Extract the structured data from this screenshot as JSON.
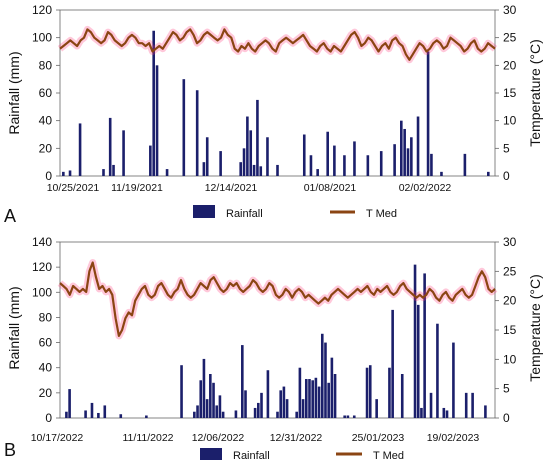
{
  "chart_data": [
    {
      "type": "bar",
      "panel_letter": "A",
      "ylabel": "Rainfall (mm)",
      "y2label": "Temperature (°C)",
      "ylim": [
        0,
        120
      ],
      "y2lim": [
        0,
        30
      ],
      "yticks": [
        "0",
        "20",
        "40",
        "60",
        "80",
        "100",
        "120"
      ],
      "y2ticks": [
        "0",
        "5",
        "10",
        "15",
        "20",
        "25",
        "30"
      ],
      "x_ticks": [
        "10/25/2021",
        "11/19/2021",
        "12/14/2021",
        "01/08/2021",
        "02/02/2022"
      ],
      "legend": [
        "Rainfall",
        "T Med"
      ],
      "colors": {
        "rainfall": "#1b1f6b",
        "tmed": "#8b4513",
        "tmed_glow": "#ff3b7a"
      },
      "rainfall": [
        {
          "day": 1,
          "value": 3
        },
        {
          "day": 3,
          "value": 4
        },
        {
          "day": 6,
          "value": 38
        },
        {
          "day": 13,
          "value": 5
        },
        {
          "day": 15,
          "value": 42
        },
        {
          "day": 16,
          "value": 8
        },
        {
          "day": 19,
          "value": 33
        },
        {
          "day": 27,
          "value": 22
        },
        {
          "day": 28,
          "value": 105
        },
        {
          "day": 29,
          "value": 80
        },
        {
          "day": 32,
          "value": 5
        },
        {
          "day": 37,
          "value": 70
        },
        {
          "day": 41,
          "value": 62
        },
        {
          "day": 43,
          "value": 10
        },
        {
          "day": 44,
          "value": 28
        },
        {
          "day": 48,
          "value": 18
        },
        {
          "day": 54,
          "value": 10
        },
        {
          "day": 55,
          "value": 20
        },
        {
          "day": 56,
          "value": 43
        },
        {
          "day": 57,
          "value": 33
        },
        {
          "day": 58,
          "value": 8
        },
        {
          "day": 59,
          "value": 55
        },
        {
          "day": 60,
          "value": 7
        },
        {
          "day": 62,
          "value": 28
        },
        {
          "day": 65,
          "value": 8
        },
        {
          "day": 73,
          "value": 30
        },
        {
          "day": 75,
          "value": 15
        },
        {
          "day": 77,
          "value": 5
        },
        {
          "day": 80,
          "value": 32
        },
        {
          "day": 82,
          "value": 22
        },
        {
          "day": 85,
          "value": 15
        },
        {
          "day": 88,
          "value": 25
        },
        {
          "day": 92,
          "value": 15
        },
        {
          "day": 96,
          "value": 18
        },
        {
          "day": 100,
          "value": 23
        },
        {
          "day": 102,
          "value": 40
        },
        {
          "day": 103,
          "value": 34
        },
        {
          "day": 104,
          "value": 20
        },
        {
          "day": 105,
          "value": 28
        },
        {
          "day": 107,
          "value": 43
        },
        {
          "day": 110,
          "value": 90
        },
        {
          "day": 111,
          "value": 16
        },
        {
          "day": 114,
          "value": 3
        },
        {
          "day": 121,
          "value": 16
        },
        {
          "day": 128,
          "value": 3
        }
      ],
      "tmed": [
        23,
        23.5,
        24,
        24.5,
        24,
        23.5,
        24.5,
        25,
        26.5,
        26,
        25,
        24.5,
        24,
        24.5,
        26,
        25.5,
        24.5,
        24,
        23.5,
        24,
        25,
        25.5,
        25,
        24,
        24,
        23.5,
        24,
        22.5,
        23,
        23.5,
        23,
        24,
        25,
        26,
        25.5,
        24.5,
        25,
        26,
        26.5,
        25.5,
        24,
        24.5,
        25.5,
        26,
        25.5,
        25,
        24.5,
        25,
        26.5,
        25.5,
        25,
        23,
        22.5,
        23.5,
        23,
        24,
        23,
        22.5,
        23.5,
        24,
        24.5,
        24,
        23,
        22.5,
        24,
        24.5,
        25,
        24.5,
        24,
        24.5,
        25,
        25.5,
        24.5,
        23.5,
        23,
        22.5,
        23.5,
        24,
        23,
        22.5,
        23.5,
        23,
        22.5,
        23.5,
        24.5,
        25.5,
        26,
        25,
        23.5,
        24,
        25,
        24.5,
        23.5,
        22.5,
        23.5,
        24,
        23,
        24.5,
        25,
        24,
        23.5,
        22,
        21,
        22,
        23,
        24,
        23.5,
        22.5,
        23,
        24,
        24.5,
        24,
        23,
        23.5,
        25,
        24.5,
        24,
        23.5,
        22.5,
        23,
        24,
        24.5,
        23,
        22.5,
        23,
        24,
        23.5,
        23
      ]
    },
    {
      "type": "bar",
      "panel_letter": "B",
      "ylabel": "Rainfall (mm)",
      "y2label": "Temperature (°C)",
      "ylim": [
        0,
        140
      ],
      "y2lim": [
        0,
        30
      ],
      "yticks": [
        "0",
        "20",
        "40",
        "60",
        "80",
        "100",
        "120",
        "140"
      ],
      "y2ticks": [
        "0",
        "5",
        "10",
        "15",
        "20",
        "25",
        "30"
      ],
      "x_ticks": [
        "10/17/2022",
        "11/11/2022",
        "12/06/2022",
        "12/31/2022",
        "25/01/2023",
        "19/02/2023"
      ],
      "legend": [
        "Rainfall",
        "T Med"
      ],
      "colors": {
        "rainfall": "#1b1f6b",
        "tmed": "#8b4513",
        "tmed_glow": "#ff3b7a"
      },
      "rainfall": [
        {
          "day": 2,
          "value": 5
        },
        {
          "day": 3,
          "value": 23
        },
        {
          "day": 8,
          "value": 6
        },
        {
          "day": 10,
          "value": 12
        },
        {
          "day": 12,
          "value": 4
        },
        {
          "day": 14,
          "value": 10
        },
        {
          "day": 19,
          "value": 3
        },
        {
          "day": 27,
          "value": 2
        },
        {
          "day": 38,
          "value": 42
        },
        {
          "day": 42,
          "value": 5
        },
        {
          "day": 43,
          "value": 10
        },
        {
          "day": 44,
          "value": 30
        },
        {
          "day": 45,
          "value": 47
        },
        {
          "day": 46,
          "value": 15
        },
        {
          "day": 47,
          "value": 35
        },
        {
          "day": 48,
          "value": 28
        },
        {
          "day": 49,
          "value": 10
        },
        {
          "day": 50,
          "value": 18
        },
        {
          "day": 51,
          "value": 5
        },
        {
          "day": 55,
          "value": 6
        },
        {
          "day": 57,
          "value": 58
        },
        {
          "day": 58,
          "value": 22
        },
        {
          "day": 61,
          "value": 8
        },
        {
          "day": 62,
          "value": 12
        },
        {
          "day": 63,
          "value": 20
        },
        {
          "day": 65,
          "value": 38
        },
        {
          "day": 68,
          "value": 5
        },
        {
          "day": 69,
          "value": 22
        },
        {
          "day": 70,
          "value": 25
        },
        {
          "day": 71,
          "value": 15
        },
        {
          "day": 74,
          "value": 5
        },
        {
          "day": 75,
          "value": 40
        },
        {
          "day": 76,
          "value": 15
        },
        {
          "day": 77,
          "value": 31
        },
        {
          "day": 78,
          "value": 31
        },
        {
          "day": 79,
          "value": 30
        },
        {
          "day": 80,
          "value": 32
        },
        {
          "day": 81,
          "value": 25
        },
        {
          "day": 82,
          "value": 67
        },
        {
          "day": 83,
          "value": 60
        },
        {
          "day": 84,
          "value": 28
        },
        {
          "day": 85,
          "value": 48
        },
        {
          "day": 86,
          "value": 35
        },
        {
          "day": 89,
          "value": 2
        },
        {
          "day": 90,
          "value": 2
        },
        {
          "day": 92,
          "value": 2
        },
        {
          "day": 96,
          "value": 40
        },
        {
          "day": 97,
          "value": 42
        },
        {
          "day": 99,
          "value": 15
        },
        {
          "day": 103,
          "value": 40
        },
        {
          "day": 104,
          "value": 86
        },
        {
          "day": 107,
          "value": 35
        },
        {
          "day": 111,
          "value": 122
        },
        {
          "day": 112,
          "value": 90
        },
        {
          "day": 113,
          "value": 8
        },
        {
          "day": 114,
          "value": 115
        },
        {
          "day": 116,
          "value": 20
        },
        {
          "day": 118,
          "value": 75
        },
        {
          "day": 120,
          "value": 8
        },
        {
          "day": 121,
          "value": 6
        },
        {
          "day": 123,
          "value": 60
        },
        {
          "day": 127,
          "value": 20
        },
        {
          "day": 129,
          "value": 20
        },
        {
          "day": 133,
          "value": 10
        }
      ],
      "tmed": [
        23,
        22.5,
        22,
        21,
        22.5,
        22,
        21.5,
        22,
        21.5,
        25,
        26.5,
        24,
        22,
        22.5,
        21.5,
        22,
        21,
        17,
        14,
        15,
        17,
        18,
        17.5,
        20,
        21,
        22,
        22.5,
        21,
        20.5,
        21,
        22.5,
        23,
        22,
        21,
        20.5,
        21.5,
        22,
        23.5,
        22,
        21,
        20.5,
        21,
        22,
        23,
        22.5,
        22,
        23.5,
        24,
        23,
        22,
        21.5,
        22,
        23,
        22.5,
        23,
        22,
        21.5,
        22,
        22.5,
        23.5,
        23,
        22,
        21.5,
        22,
        23,
        22.5,
        21,
        20.5,
        21,
        22,
        21.5,
        20.5,
        21.5,
        22,
        21.5,
        20.5,
        21,
        20.5,
        20,
        19.5,
        20,
        20.5,
        20,
        21,
        21.5,
        22,
        21.5,
        21,
        20.5,
        21,
        21.5,
        22,
        21.5,
        22,
        22.5,
        21.5,
        21,
        22,
        21.5,
        22,
        22.5,
        21.5,
        21,
        21.5,
        22.5,
        23,
        22,
        21.5,
        21,
        20.5,
        21,
        20.5,
        21,
        22,
        21.5,
        20.5,
        20,
        21,
        21.5,
        20.5,
        20,
        21,
        21.5,
        22,
        21,
        20.5,
        21,
        22.5,
        24,
        25,
        24,
        22,
        21.5,
        22
      ]
    }
  ]
}
